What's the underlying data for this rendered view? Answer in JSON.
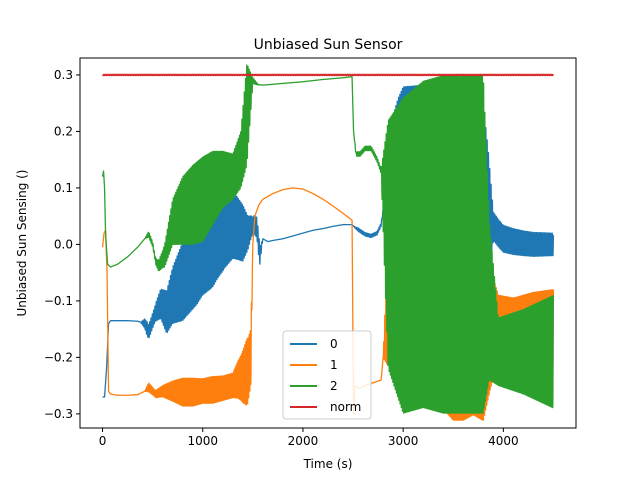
{
  "chart_data": {
    "type": "line",
    "title": "Unbiased Sun Sensor",
    "xlabel": "Time (s)",
    "ylabel": "Unbiased Sun Sensing ()",
    "xlim": [
      -225,
      4725
    ],
    "ylim": [
      -0.325,
      0.33
    ],
    "xticks": [
      0,
      1000,
      2000,
      3000,
      4000
    ],
    "xtick_labels": [
      "0",
      "1000",
      "2000",
      "3000",
      "4000"
    ],
    "yticks": [
      -0.3,
      -0.2,
      -0.1,
      0.0,
      0.1,
      0.2,
      0.3
    ],
    "ytick_labels": [
      "−0.3",
      "−0.2",
      "−0.1",
      "0.0",
      "0.1",
      "0.2",
      "0.3"
    ],
    "grid": false,
    "legend_position": "bottom-center",
    "series": [
      {
        "name": "0",
        "color": "#1f77b4",
        "points": [
          [
            0,
            -0.27
          ],
          [
            20,
            -0.27
          ],
          [
            40,
            -0.22
          ],
          [
            60,
            -0.14
          ],
          [
            80,
            -0.135
          ],
          [
            150,
            -0.135
          ],
          [
            250,
            -0.135
          ],
          [
            350,
            -0.136
          ],
          [
            420,
            -0.14
          ],
          [
            460,
            -0.155
          ],
          [
            490,
            -0.14
          ],
          [
            530,
            -0.12
          ],
          [
            580,
            -0.105
          ],
          [
            640,
            -0.12
          ],
          [
            700,
            -0.09
          ],
          [
            780,
            -0.07
          ],
          [
            860,
            -0.05
          ],
          [
            940,
            -0.03
          ],
          [
            1000,
            -0.01
          ],
          [
            1080,
            0.005
          ],
          [
            1150,
            0.02
          ],
          [
            1220,
            0.03
          ],
          [
            1300,
            0.035
          ],
          [
            1350,
            0.028
          ],
          [
            1400,
            0.02
          ],
          [
            1450,
            0.02
          ],
          [
            1480,
            0.03
          ],
          [
            1510,
            0.035
          ],
          [
            1540,
            0.03
          ],
          [
            1570,
            -0.02
          ],
          [
            1600,
            0.01
          ],
          [
            1650,
            0.005
          ],
          [
            1700,
            0.007
          ],
          [
            1800,
            0.01
          ],
          [
            1900,
            0.015
          ],
          [
            2000,
            0.02
          ],
          [
            2100,
            0.025
          ],
          [
            2200,
            0.028
          ],
          [
            2300,
            0.032
          ],
          [
            2400,
            0.035
          ],
          [
            2490,
            0.035
          ],
          [
            2520,
            0.03
          ],
          [
            2560,
            0.025
          ],
          [
            2620,
            0.018
          ],
          [
            2680,
            0.015
          ],
          [
            2740,
            0.02
          ],
          [
            2780,
            0.035
          ],
          [
            2800,
            0.06
          ],
          [
            2850,
            0.08
          ],
          [
            2900,
            0.09
          ],
          [
            2950,
            0.1
          ],
          [
            3000,
            0.1
          ],
          [
            3100,
            0.095
          ],
          [
            3200,
            0.09
          ],
          [
            3300,
            0.085
          ],
          [
            3400,
            0.08
          ],
          [
            3500,
            0.075
          ],
          [
            3600,
            0.07
          ],
          [
            3700,
            0.065
          ],
          [
            3800,
            0.06
          ],
          [
            3870,
            0.04
          ],
          [
            3950,
            0.02
          ],
          [
            4000,
            0.01
          ],
          [
            4100,
            0.005
          ],
          [
            4200,
            0.002
          ],
          [
            4300,
            0.0
          ],
          [
            4400,
            0.0
          ],
          [
            4500,
            0.0
          ]
        ],
        "env": [
          [
            0,
            0
          ],
          [
            380,
            0
          ],
          [
            440,
            0.012
          ],
          [
            520,
            0.014
          ],
          [
            600,
            0.03
          ],
          [
            700,
            0.05
          ],
          [
            800,
            0.07
          ],
          [
            900,
            0.075
          ],
          [
            1000,
            0.08
          ],
          [
            1100,
            0.085
          ],
          [
            1200,
            0.075
          ],
          [
            1300,
            0.06
          ],
          [
            1400,
            0.05
          ],
          [
            1450,
            0.03
          ],
          [
            1500,
            0.015
          ],
          [
            1560,
            0.02
          ],
          [
            1600,
            0
          ],
          [
            2500,
            0
          ],
          [
            2550,
            0.003
          ],
          [
            2800,
            0.003
          ],
          [
            2850,
            0.12
          ],
          [
            3000,
            0.18
          ],
          [
            3300,
            0.2
          ],
          [
            3600,
            0.2
          ],
          [
            3800,
            0.19
          ],
          [
            3850,
            0.12
          ],
          [
            3900,
            0.025
          ],
          [
            4200,
            0.022
          ],
          [
            4500,
            0.02
          ]
        ],
        "freq": 13
      },
      {
        "name": "1",
        "color": "#ff7f0e",
        "points": [
          [
            0,
            -0.005
          ],
          [
            15,
            0.02
          ],
          [
            30,
            0.025
          ],
          [
            45,
            -0.05
          ],
          [
            60,
            -0.26
          ],
          [
            80,
            -0.265
          ],
          [
            150,
            -0.267
          ],
          [
            250,
            -0.267
          ],
          [
            350,
            -0.266
          ],
          [
            420,
            -0.26
          ],
          [
            460,
            -0.253
          ],
          [
            490,
            -0.258
          ],
          [
            530,
            -0.265
          ],
          [
            600,
            -0.26
          ],
          [
            700,
            -0.26
          ],
          [
            800,
            -0.262
          ],
          [
            900,
            -0.262
          ],
          [
            1000,
            -0.26
          ],
          [
            1100,
            -0.258
          ],
          [
            1200,
            -0.255
          ],
          [
            1300,
            -0.25
          ],
          [
            1350,
            -0.24
          ],
          [
            1400,
            -0.235
          ],
          [
            1450,
            -0.225
          ],
          [
            1480,
            -0.2
          ],
          [
            1500,
            0.0
          ],
          [
            1520,
            0.05
          ],
          [
            1560,
            0.07
          ],
          [
            1600,
            0.08
          ],
          [
            1700,
            0.09
          ],
          [
            1800,
            0.097
          ],
          [
            1900,
            0.1
          ],
          [
            2000,
            0.098
          ],
          [
            2100,
            0.09
          ],
          [
            2200,
            0.08
          ],
          [
            2300,
            0.068
          ],
          [
            2400,
            0.055
          ],
          [
            2490,
            0.043
          ],
          [
            2505,
            -0.3
          ],
          [
            2520,
            -0.25
          ],
          [
            2560,
            -0.255
          ],
          [
            2620,
            -0.25
          ],
          [
            2700,
            -0.245
          ],
          [
            2780,
            -0.24
          ],
          [
            2850,
            -0.1
          ],
          [
            2900,
            -0.05
          ],
          [
            3000,
            -0.02
          ],
          [
            3100,
            -0.02
          ],
          [
            3200,
            -0.03
          ],
          [
            3300,
            -0.05
          ],
          [
            3400,
            -0.08
          ],
          [
            3500,
            -0.1
          ],
          [
            3600,
            -0.1
          ],
          [
            3700,
            -0.1
          ],
          [
            3800,
            -0.12
          ],
          [
            3870,
            -0.15
          ],
          [
            3950,
            -0.15
          ],
          [
            4100,
            -0.15
          ],
          [
            4300,
            -0.15
          ],
          [
            4500,
            -0.15
          ]
        ],
        "env": [
          [
            0,
            0
          ],
          [
            420,
            0
          ],
          [
            460,
            0.008
          ],
          [
            520,
            0.006
          ],
          [
            600,
            0.01
          ],
          [
            700,
            0.018
          ],
          [
            800,
            0.025
          ],
          [
            900,
            0.025
          ],
          [
            1000,
            0.022
          ],
          [
            1100,
            0.024
          ],
          [
            1200,
            0.022
          ],
          [
            1300,
            0.022
          ],
          [
            1380,
            0.04
          ],
          [
            1440,
            0.06
          ],
          [
            1480,
            0.05
          ],
          [
            1500,
            0
          ],
          [
            2500,
            0
          ],
          [
            2800,
            0
          ],
          [
            2850,
            0.12
          ],
          [
            3000,
            0.18
          ],
          [
            3300,
            0.22
          ],
          [
            3600,
            0.22
          ],
          [
            3800,
            0.2
          ],
          [
            3870,
            0.11
          ],
          [
            3950,
            0.06
          ],
          [
            4100,
            0.055
          ],
          [
            4300,
            0.065
          ],
          [
            4500,
            0.07
          ]
        ],
        "freq": 11
      },
      {
        "name": "2",
        "color": "#2ca02c",
        "points": [
          [
            0,
            0.12
          ],
          [
            10,
            0.13
          ],
          [
            20,
            0.1
          ],
          [
            30,
            0.02
          ],
          [
            50,
            -0.035
          ],
          [
            80,
            -0.04
          ],
          [
            150,
            -0.035
          ],
          [
            250,
            -0.022
          ],
          [
            350,
            -0.005
          ],
          [
            420,
            0.01
          ],
          [
            460,
            0.018
          ],
          [
            500,
            0.0
          ],
          [
            530,
            -0.03
          ],
          [
            560,
            -0.038
          ],
          [
            620,
            -0.02
          ],
          [
            700,
            0.04
          ],
          [
            800,
            0.06
          ],
          [
            900,
            0.07
          ],
          [
            1000,
            0.08
          ],
          [
            1100,
            0.1
          ],
          [
            1200,
            0.115
          ],
          [
            1300,
            0.12
          ],
          [
            1380,
            0.15
          ],
          [
            1440,
            0.23
          ],
          [
            1500,
            0.29
          ],
          [
            1550,
            0.283
          ],
          [
            1600,
            0.282
          ],
          [
            1800,
            0.285
          ],
          [
            2000,
            0.288
          ],
          [
            2200,
            0.292
          ],
          [
            2400,
            0.295
          ],
          [
            2490,
            0.297
          ],
          [
            2505,
            0.2
          ],
          [
            2530,
            0.16
          ],
          [
            2570,
            0.16
          ],
          [
            2620,
            0.17
          ],
          [
            2680,
            0.17
          ],
          [
            2740,
            0.15
          ],
          [
            2780,
            0.13
          ],
          [
            2850,
            0.0
          ],
          [
            3000,
            -0.02
          ],
          [
            3200,
            0.0
          ],
          [
            3400,
            0.0
          ],
          [
            3600,
            0.0
          ],
          [
            3800,
            0.0
          ],
          [
            3860,
            -0.1
          ],
          [
            3950,
            -0.19
          ],
          [
            4100,
            -0.19
          ],
          [
            4300,
            -0.19
          ],
          [
            4500,
            -0.19
          ]
        ],
        "env": [
          [
            0,
            0
          ],
          [
            420,
            0
          ],
          [
            460,
            0.005
          ],
          [
            520,
            0.004
          ],
          [
            600,
            0.015
          ],
          [
            700,
            0.04
          ],
          [
            800,
            0.06
          ],
          [
            900,
            0.07
          ],
          [
            1000,
            0.075
          ],
          [
            1100,
            0.065
          ],
          [
            1200,
            0.05
          ],
          [
            1300,
            0.04
          ],
          [
            1380,
            0.05
          ],
          [
            1440,
            0.09
          ],
          [
            1500,
            0.005
          ],
          [
            1560,
            0
          ],
          [
            2500,
            0
          ],
          [
            2540,
            0.004
          ],
          [
            2780,
            0.004
          ],
          [
            2850,
            0.22
          ],
          [
            3000,
            0.28
          ],
          [
            3400,
            0.3
          ],
          [
            3800,
            0.3
          ],
          [
            3860,
            0.14
          ],
          [
            3950,
            0.06
          ],
          [
            4200,
            0.075
          ],
          [
            4500,
            0.1
          ]
        ],
        "freq": 12
      },
      {
        "name": "norm",
        "color": "#d62728",
        "points": [
          [
            0,
            0.3
          ],
          [
            1000,
            0.3
          ],
          [
            2000,
            0.3
          ],
          [
            3000,
            0.3
          ],
          [
            4000,
            0.3
          ],
          [
            4500,
            0.3
          ]
        ],
        "env": [
          [
            0,
            0.0012
          ],
          [
            4500,
            0.0012
          ]
        ],
        "freq": 17
      }
    ]
  }
}
